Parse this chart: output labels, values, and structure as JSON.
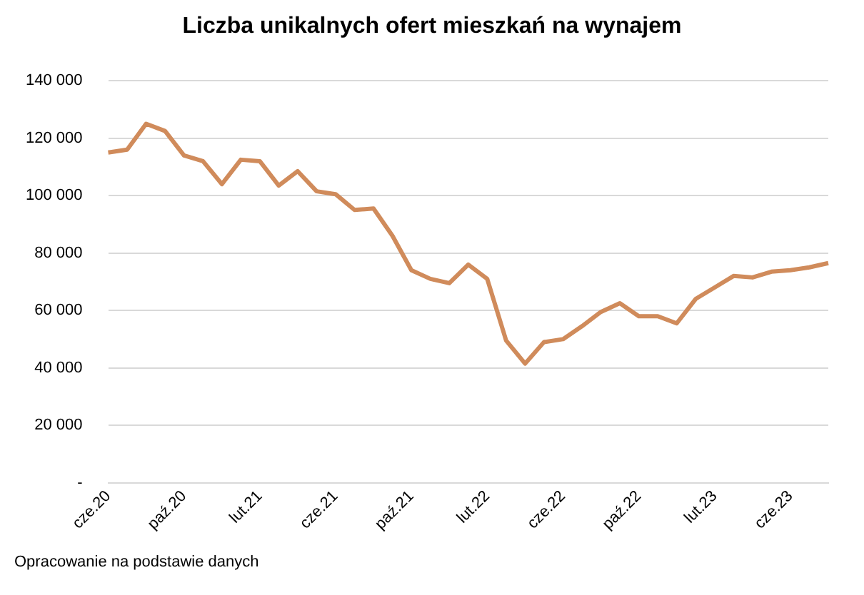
{
  "chart_data": {
    "type": "line",
    "title": "Liczba unikalnych ofert mieszkań na wynajem",
    "categories": [
      "cze.20",
      null,
      null,
      null,
      "paź.20",
      null,
      null,
      null,
      "lut.21",
      null,
      null,
      null,
      "cze.21",
      null,
      null,
      null,
      "paź.21",
      null,
      null,
      null,
      "lut.22",
      null,
      null,
      null,
      "cze.22",
      null,
      null,
      null,
      "paź.22",
      null,
      null,
      null,
      "lut.23",
      null,
      null,
      null,
      "cze.23",
      null,
      null
    ],
    "series": [
      {
        "color": "#d08b5b",
        "values": [
          115000,
          116000,
          125000,
          122500,
          114000,
          112000,
          104000,
          112500,
          112000,
          103500,
          108500,
          101500,
          100500,
          95000,
          95500,
          86000,
          74000,
          71000,
          69500,
          76000,
          71000,
          49500,
          41500,
          49000,
          50000,
          54500,
          59500,
          62500,
          58000,
          58000,
          55500,
          64000,
          68000,
          72000,
          71500,
          73500,
          74000,
          75000,
          76500
        ]
      }
    ],
    "ylim": [
      0,
      140000
    ],
    "yticks": [
      {
        "value": 0,
        "label": "-"
      },
      {
        "value": 20000,
        "label": "20 000"
      },
      {
        "value": 40000,
        "label": "40 000"
      },
      {
        "value": 60000,
        "label": "60 000"
      },
      {
        "value": 80000,
        "label": "80 000"
      },
      {
        "value": 100000,
        "label": "100 000"
      },
      {
        "value": 120000,
        "label": "120 000"
      },
      {
        "value": 140000,
        "label": "140 000"
      }
    ],
    "grid": "y",
    "legend": false,
    "marker": "none",
    "line_style": "solid",
    "annotations": [
      "Opracowanie na podstawie danych"
    ]
  }
}
